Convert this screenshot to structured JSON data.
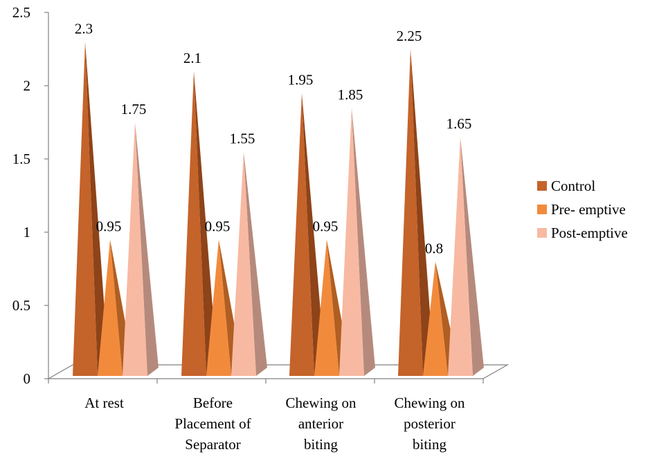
{
  "chart_data": {
    "type": "bar",
    "style": "3d-pyramid",
    "categories": [
      [
        "At rest"
      ],
      [
        "Before",
        "Placement of",
        "Separator"
      ],
      [
        "Chewing on",
        "anterior",
        "biting"
      ],
      [
        "Chewing on",
        "posterior",
        "biting"
      ]
    ],
    "series": [
      {
        "name": "Control",
        "color": "#C4632A",
        "shade": "#8E4318",
        "values": [
          2.3,
          2.1,
          1.95,
          2.25
        ],
        "labels": [
          "2.3",
          "2.1",
          "1.95",
          "2.25"
        ]
      },
      {
        "name": "Pre- emptive",
        "color": "#F28A3C",
        "shade": "#B05E22",
        "values": [
          0.95,
          0.95,
          0.95,
          0.8
        ],
        "labels": [
          "0.95",
          "0.95",
          "0.95",
          "0.8"
        ]
      },
      {
        "name": "Post-emptive",
        "color": "#F8B9A2",
        "shade": "#B58A7C",
        "values": [
          1.75,
          1.55,
          1.85,
          1.65
        ],
        "labels": [
          "1.75",
          "1.55",
          "1.85",
          "1.65"
        ]
      }
    ],
    "y_ticks": [
      "0",
      "0.5",
      "1",
      "1.5",
      "2",
      "2.5"
    ],
    "ylim": [
      0,
      2.5
    ],
    "legend_position": "right",
    "grid": false
  }
}
